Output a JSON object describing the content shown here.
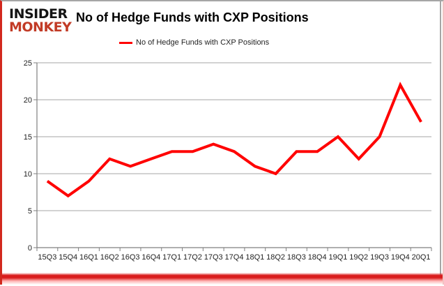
{
  "logo": {
    "line1": "INSIDER",
    "line2": "MONKEY"
  },
  "header": {
    "title": "No of Hedge Funds with CXP Positions"
  },
  "legend": {
    "label": "No of Hedge Funds with CXP Positions"
  },
  "colors": {
    "line": "#ff0000",
    "logo_black": "#141414",
    "logo_red": "#c23b26",
    "grid": "#a6a6a6",
    "axis": "#7f7f7f",
    "tick_label": "#1f1f1f",
    "frame_red": "#d2281e"
  },
  "chart_data": {
    "type": "line",
    "title": "No of Hedge Funds with CXP Positions",
    "categories": [
      "15Q3",
      "15Q4",
      "16Q1",
      "16Q2",
      "16Q3",
      "16Q4",
      "17Q1",
      "17Q2",
      "17Q3",
      "17Q4",
      "18Q1",
      "18Q2",
      "18Q3",
      "18Q4",
      "19Q1",
      "19Q2",
      "19Q3",
      "19Q4",
      "20Q1"
    ],
    "series": [
      {
        "name": "No of Hedge Funds with CXP Positions",
        "values": [
          9,
          7,
          9,
          12,
          11,
          12,
          13,
          13,
          14,
          13,
          11,
          10,
          13,
          13,
          15,
          12,
          15,
          22,
          17
        ]
      }
    ],
    "xlabel": "",
    "ylabel": "",
    "ylim": [
      0,
      25
    ],
    "yticks": [
      0,
      5,
      10,
      15,
      20,
      25
    ],
    "grid": true,
    "legend_position": "top-center"
  }
}
